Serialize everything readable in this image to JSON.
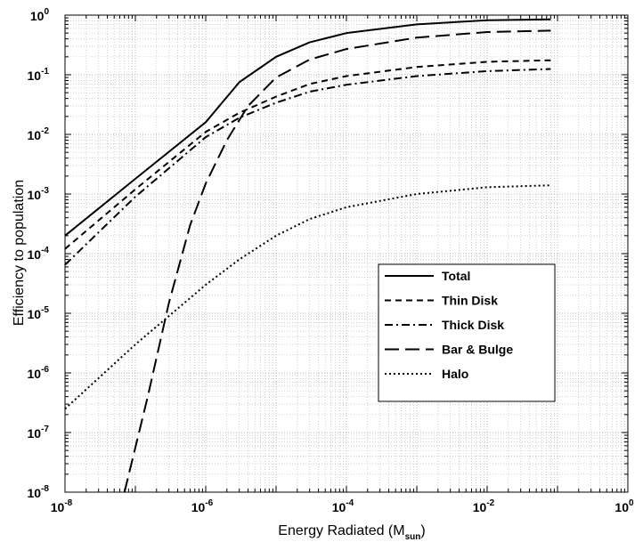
{
  "chart_data": {
    "type": "line",
    "xlabel": "Energy Radiated (M",
    "xlabel_sub": "sun",
    "xlabel_close": ")",
    "ylabel": "Efficiency to population",
    "x_scale": "log",
    "y_scale": "log",
    "xlim": [
      1e-08,
      1
    ],
    "ylim": [
      1e-08,
      1
    ],
    "x_ticks": [
      {
        "base": "10",
        "exp": "-8",
        "value": 1e-08
      },
      {
        "base": "10",
        "exp": "-6",
        "value": 1e-06
      },
      {
        "base": "10",
        "exp": "-4",
        "value": 0.0001
      },
      {
        "base": "10",
        "exp": "-2",
        "value": 0.01
      },
      {
        "base": "10",
        "exp": "0",
        "value": 1
      }
    ],
    "y_ticks": [
      {
        "base": "10",
        "exp": "0",
        "value": 1
      },
      {
        "base": "10",
        "exp": "-1",
        "value": 0.1
      },
      {
        "base": "10",
        "exp": "-2",
        "value": 0.01
      },
      {
        "base": "10",
        "exp": "-3",
        "value": 0.001
      },
      {
        "base": "10",
        "exp": "-4",
        "value": 0.0001
      },
      {
        "base": "10",
        "exp": "-5",
        "value": 1e-05
      },
      {
        "base": "10",
        "exp": "-6",
        "value": 1e-06
      },
      {
        "base": "10",
        "exp": "-7",
        "value": 1e-07
      },
      {
        "base": "10",
        "exp": "-8",
        "value": 1e-08
      }
    ],
    "grid": true,
    "minor_grid": true,
    "legend_position": "center-right",
    "series": [
      {
        "name": "Total",
        "dash": "solid",
        "color": "#000000",
        "x": [
          1e-08,
          1e-07,
          1e-06,
          3e-06,
          1e-05,
          3e-05,
          0.0001,
          0.001,
          0.01,
          0.08
        ],
        "y": [
          0.0002,
          0.0018,
          0.016,
          0.075,
          0.2,
          0.35,
          0.5,
          0.7,
          0.82,
          0.85
        ]
      },
      {
        "name": "Thin Disk",
        "dash": "short",
        "color": "#000000",
        "x": [
          1e-08,
          1e-07,
          1e-06,
          3e-06,
          1e-05,
          3e-05,
          0.0001,
          0.001,
          0.01,
          0.08
        ],
        "y": [
          0.00012,
          0.0012,
          0.011,
          0.023,
          0.043,
          0.07,
          0.095,
          0.135,
          0.165,
          0.175
        ]
      },
      {
        "name": "Thick Disk",
        "dash": "dashdot",
        "color": "#000000",
        "x": [
          1e-08,
          1e-07,
          1e-06,
          3e-06,
          1e-05,
          3e-05,
          0.0001,
          0.001,
          0.01,
          0.08
        ],
        "y": [
          6.5e-05,
          0.0009,
          0.009,
          0.019,
          0.034,
          0.052,
          0.068,
          0.095,
          0.115,
          0.125
        ]
      },
      {
        "name": "Bar & Bulge",
        "dash": "long",
        "color": "#000000",
        "x": [
          7e-08,
          1.5e-07,
          3e-07,
          6e-07,
          1e-06,
          2e-06,
          4e-06,
          1e-05,
          3e-05,
          0.0001,
          0.001,
          0.01,
          0.08
        ],
        "y": [
          1e-08,
          4e-07,
          1.5e-05,
          0.0003,
          0.0015,
          0.008,
          0.03,
          0.09,
          0.18,
          0.27,
          0.42,
          0.52,
          0.55
        ]
      },
      {
        "name": "Halo",
        "dash": "dotted",
        "color": "#000000",
        "x": [
          1e-08,
          1e-07,
          1e-06,
          3e-06,
          1e-05,
          3e-05,
          0.0001,
          0.001,
          0.01,
          0.08
        ],
        "y": [
          2.5e-07,
          3e-06,
          3e-05,
          8e-05,
          0.0002,
          0.00038,
          0.0006,
          0.001,
          0.0013,
          0.0014
        ]
      }
    ]
  }
}
